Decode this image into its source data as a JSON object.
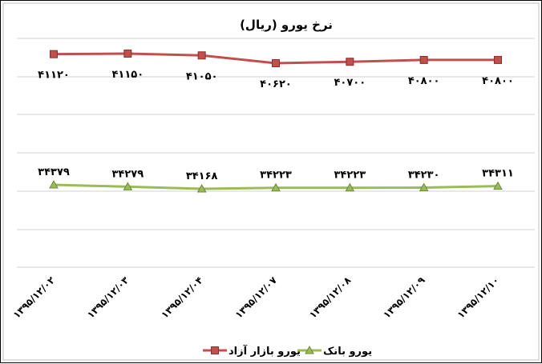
{
  "chart_data": {
    "type": "line",
    "title": "نرخ یورو (ریال)",
    "categories": [
      "۱۳۹۵/۱۲/۰۲",
      "۱۳۹۵/۱۲/۰۳",
      "۱۳۹۵/۱۲/۰۴",
      "۱۳۹۵/۱۲/۰۷",
      "۱۳۹۵/۱۲/۰۸",
      "۱۳۹۵/۱۲/۰۹",
      "۱۳۹۵/۱۲/۱۰"
    ],
    "series": [
      {
        "name": "یورو بازار آزاد",
        "color": "#c0504d",
        "marker": "square",
        "values": [
          41120,
          41150,
          41050,
          40620,
          40700,
          40800,
          40800
        ],
        "labels": [
          "۴۱۱۲۰",
          "۴۱۱۵۰",
          "۴۱۰۵۰",
          "۴۰۶۲۰",
          "۴۰۷۰۰",
          "۴۰۸۰۰",
          "۴۰۸۰۰"
        ]
      },
      {
        "name": "یورو بانک",
        "color": "#9bbb59",
        "marker": "triangle",
        "values": [
          34379,
          34279,
          34168,
          34223,
          34223,
          34230,
          34311
        ],
        "labels": [
          "۳۴۳۷۹",
          "۳۴۲۷۹",
          "۳۴۱۶۸",
          "۳۴۲۲۳",
          "۳۴۲۲۳",
          "۳۴۲۳۰",
          "۳۴۳۱۱"
        ]
      }
    ],
    "grid": true,
    "legend": "bottom"
  }
}
